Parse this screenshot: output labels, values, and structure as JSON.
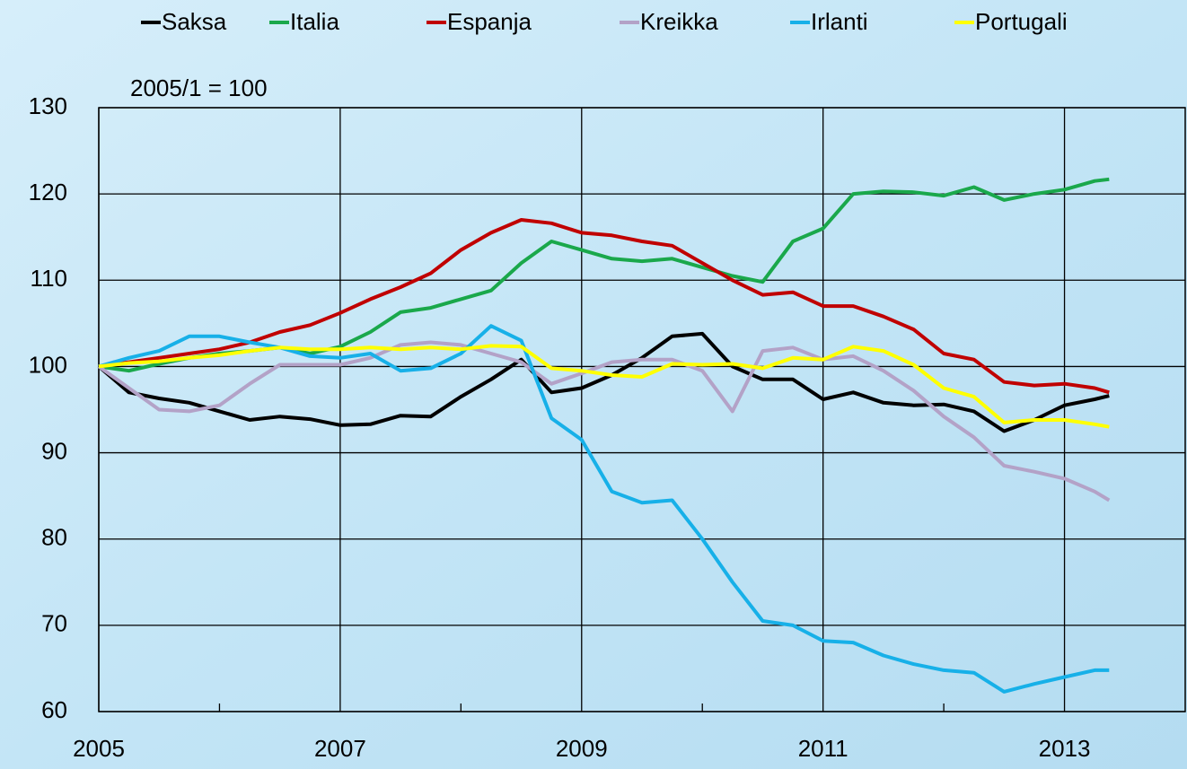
{
  "chart_data": {
    "type": "line",
    "annotation": "2005/1 = 100",
    "x": [
      2005,
      2005.25,
      2005.5,
      2005.75,
      2006,
      2006.25,
      2006.5,
      2006.75,
      2007,
      2007.25,
      2007.5,
      2007.75,
      2008,
      2008.25,
      2008.5,
      2008.75,
      2009,
      2009.25,
      2009.5,
      2009.75,
      2010,
      2010.25,
      2010.5,
      2010.75,
      2011,
      2011.25,
      2011.5,
      2011.75,
      2012,
      2012.25,
      2012.5,
      2012.75,
      2013,
      2013.25,
      2013.37
    ],
    "series": [
      {
        "name": "Saksa",
        "color": "#000000",
        "values": [
          100,
          97,
          96.3,
          95.8,
          94.8,
          93.8,
          94.2,
          93.9,
          93.2,
          93.3,
          94.3,
          94.2,
          96.5,
          98.5,
          100.8,
          97,
          97.5,
          99,
          101,
          103.5,
          103.8,
          100,
          98.5,
          98.5,
          96.2,
          97,
          95.8,
          95.5,
          95.6,
          94.8,
          92.5,
          93.8,
          95.5,
          96.2,
          96.6
        ]
      },
      {
        "name": "Italia",
        "color": "#1aa84b",
        "values": [
          100,
          99.5,
          100.3,
          101,
          101.5,
          101.8,
          102.2,
          101.5,
          102.3,
          104,
          106.3,
          106.8,
          107.8,
          108.8,
          112,
          114.5,
          113.5,
          112.5,
          112.2,
          112.5,
          111.5,
          110.5,
          109.8,
          114.5,
          116,
          120,
          120.3,
          120.2,
          119.8,
          120.8,
          119.3,
          120,
          120.5,
          121.5,
          121.7
        ]
      },
      {
        "name": "Espanja",
        "color": "#c00000",
        "values": [
          100,
          100.5,
          101,
          101.5,
          102,
          102.8,
          104,
          104.8,
          106.2,
          107.8,
          109.2,
          110.8,
          113.5,
          115.5,
          117,
          116.6,
          115.5,
          115.2,
          114.5,
          114,
          112,
          110,
          108.3,
          108.6,
          107,
          107,
          105.8,
          104.3,
          101.5,
          100.8,
          98.2,
          97.8,
          98,
          97.5,
          97
        ]
      },
      {
        "name": "Kreikka",
        "color": "#b3a2c7",
        "values": [
          100,
          97.5,
          95,
          94.8,
          95.5,
          98,
          100.2,
          100.2,
          100.2,
          101,
          102.5,
          102.8,
          102.5,
          101.5,
          100.5,
          98,
          99.2,
          100.5,
          100.8,
          100.8,
          99.5,
          94.8,
          101.8,
          102.2,
          100.8,
          101.2,
          99.5,
          97.2,
          94.2,
          91.8,
          88.5,
          87.8,
          87,
          85.5,
          84.5
        ]
      },
      {
        "name": "Irlanti",
        "color": "#17b0e8",
        "values": [
          100,
          101,
          101.8,
          103.5,
          103.5,
          102.8,
          102.2,
          101.2,
          101,
          101.5,
          99.5,
          99.8,
          101.5,
          104.7,
          103,
          94,
          91.5,
          85.5,
          84.2,
          84.5,
          80,
          75,
          70.5,
          70,
          68.2,
          68,
          66.5,
          65.5,
          64.8,
          64.5,
          62.3,
          63.2,
          64,
          64.8,
          64.8
        ]
      },
      {
        "name": "Portugali",
        "color": "#ffff00",
        "values": [
          100,
          100.4,
          100.6,
          101,
          101.3,
          101.8,
          102.2,
          102,
          102,
          102.2,
          102,
          102.2,
          102,
          102.4,
          102.3,
          99.8,
          99.5,
          99,
          98.8,
          100.3,
          100.2,
          100.3,
          99.8,
          101,
          100.8,
          102.3,
          101.8,
          100.2,
          97.5,
          96.5,
          93.5,
          93.8,
          93.8,
          93.3,
          93
        ]
      }
    ],
    "xlim": [
      2005,
      2014
    ],
    "xticks": [
      2005,
      2007,
      2009,
      2011,
      2013
    ],
    "xminor_ticks": [
      2006,
      2008,
      2010,
      2012
    ],
    "ylim": [
      60,
      130
    ],
    "yticks": [
      60,
      70,
      80,
      90,
      100,
      110,
      120,
      130
    ],
    "grid": true,
    "legend": "top"
  }
}
